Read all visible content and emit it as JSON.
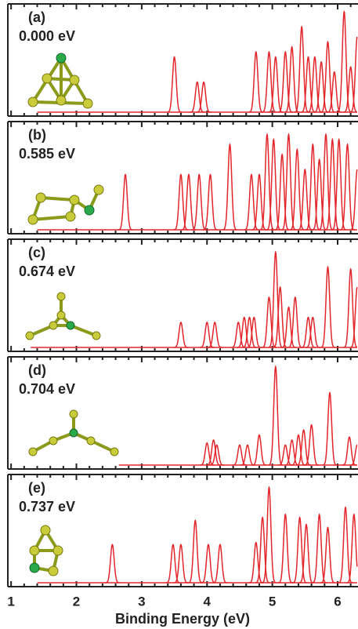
{
  "chart_data": [
    {
      "type": "line",
      "label": "(a)",
      "energy": "0.000 eV",
      "color": "#e2262b",
      "line_start": 1.4,
      "x": [
        3.5,
        3.85,
        3.95,
        4.75,
        4.95,
        5.05,
        5.2,
        5.3,
        5.45,
        5.55,
        5.65,
        5.75,
        5.85,
        5.95,
        6.1,
        6.2,
        6.3
      ],
      "values": [
        0.55,
        0.3,
        0.3,
        0.6,
        0.6,
        0.55,
        0.6,
        0.65,
        0.85,
        0.55,
        0.55,
        0.5,
        0.7,
        0.4,
        1.0,
        0.45,
        0.75
      ],
      "xlim": [
        0.95,
        6.3
      ],
      "xticks": [
        1,
        2,
        3,
        4,
        5,
        6
      ],
      "xminorticks": [
        1.2,
        1.4,
        1.6,
        1.8,
        2.2,
        2.4,
        2.6,
        2.8,
        3.2,
        3.4,
        3.6,
        3.8,
        4.2,
        4.4,
        4.6,
        4.8,
        5.2,
        5.4,
        5.6,
        5.8,
        6.2
      ]
    },
    {
      "type": "line",
      "label": "(b)",
      "energy": "0.585 eV",
      "color": "#e2262b",
      "line_start": 1.4,
      "x": [
        2.75,
        3.6,
        3.72,
        3.88,
        4.05,
        4.35,
        4.68,
        4.8,
        4.92,
        5.02,
        5.15,
        5.25,
        5.38,
        5.5,
        5.62,
        5.72,
        5.82,
        5.92,
        6.02,
        6.15,
        6.3
      ],
      "values": [
        0.55,
        0.55,
        0.55,
        0.55,
        0.55,
        0.85,
        0.55,
        0.55,
        0.95,
        0.9,
        0.75,
        0.95,
        0.8,
        0.6,
        0.85,
        0.7,
        0.95,
        0.9,
        0.9,
        0.85,
        0.6
      ],
      "xlim": [
        0.95,
        6.3
      ],
      "xticks": [
        1,
        2,
        3,
        4,
        5,
        6
      ],
      "xminorticks": [
        1.2,
        1.4,
        1.6,
        1.8,
        2.2,
        2.4,
        2.6,
        2.8,
        3.2,
        3.4,
        3.6,
        3.8,
        4.2,
        4.4,
        4.6,
        4.8,
        5.2,
        5.4,
        5.6,
        5.8,
        6.2
      ]
    },
    {
      "type": "line",
      "label": "(c)",
      "energy": "0.674 eV",
      "color": "#e2262b",
      "line_start": 1.3,
      "x": [
        3.6,
        4.0,
        4.12,
        4.48,
        4.57,
        4.65,
        4.72,
        4.95,
        5.05,
        5.12,
        5.25,
        5.35,
        5.55,
        5.62,
        5.85,
        6.2,
        6.3
      ],
      "values": [
        0.25,
        0.25,
        0.25,
        0.25,
        0.3,
        0.3,
        0.3,
        0.5,
        0.95,
        0.6,
        0.4,
        0.5,
        0.3,
        0.3,
        0.8,
        0.78,
        0.6
      ],
      "xlim": [
        0.95,
        6.3
      ],
      "xticks": [
        1,
        2,
        3,
        4,
        5,
        6
      ],
      "xminorticks": [
        1.2,
        1.4,
        1.6,
        1.8,
        2.2,
        2.4,
        2.6,
        2.8,
        3.2,
        3.4,
        3.6,
        3.8,
        4.2,
        4.4,
        4.6,
        4.8,
        5.2,
        5.4,
        5.6,
        5.8,
        6.2
      ]
    },
    {
      "type": "line",
      "label": "(d)",
      "energy": "0.704 eV",
      "color": "#e2262b",
      "line_start": 2.65,
      "x": [
        4.0,
        4.1,
        4.15,
        4.5,
        4.62,
        4.8,
        5.05,
        5.2,
        5.3,
        5.4,
        5.48,
        5.6,
        5.88,
        6.18,
        6.3
      ],
      "values": [
        0.22,
        0.25,
        0.2,
        0.2,
        0.2,
        0.3,
        0.98,
        0.2,
        0.25,
        0.3,
        0.35,
        0.4,
        0.72,
        0.28,
        0.2
      ],
      "xlim": [
        0.95,
        6.3
      ],
      "xticks": [
        1,
        2,
        3,
        4,
        5,
        6
      ],
      "xminorticks": [
        1.2,
        1.4,
        1.6,
        1.8,
        2.2,
        2.4,
        2.6,
        2.8,
        3.2,
        3.4,
        3.6,
        3.8,
        4.2,
        4.4,
        4.6,
        4.8,
        5.2,
        5.4,
        5.6,
        5.8,
        6.2
      ]
    },
    {
      "type": "line",
      "label": "(e)",
      "energy": "0.737 eV",
      "color": "#e2262b",
      "line_start": 1.4,
      "x": [
        2.55,
        3.48,
        3.6,
        3.82,
        4.02,
        4.2,
        4.75,
        4.85,
        4.95,
        5.2,
        5.42,
        5.52,
        5.72,
        5.85,
        6.12,
        6.25
      ],
      "values": [
        0.38,
        0.38,
        0.38,
        0.62,
        0.38,
        0.38,
        0.4,
        0.65,
        0.95,
        0.68,
        0.65,
        0.58,
        0.68,
        0.55,
        0.75,
        0.68
      ],
      "xlim": [
        0.95,
        6.3
      ],
      "xticks": [
        1,
        2,
        3,
        4,
        5,
        6
      ],
      "xminorticks": [
        1.2,
        1.4,
        1.6,
        1.8,
        2.2,
        2.4,
        2.6,
        2.8,
        3.2,
        3.4,
        3.6,
        3.8,
        4.2,
        4.4,
        4.6,
        4.8,
        5.2,
        5.4,
        5.6,
        5.8,
        6.2
      ],
      "xlabel": "Binding Energy (eV)"
    }
  ]
}
